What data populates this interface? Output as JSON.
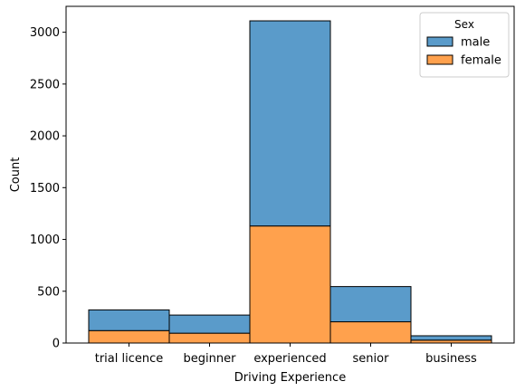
{
  "chart_data": {
    "type": "bar",
    "stacked": true,
    "categories": [
      "trial licence",
      "beginner",
      "experienced",
      "senior",
      "business"
    ],
    "series": [
      {
        "name": "female",
        "values": [
          120,
          95,
          1130,
          205,
          28
        ],
        "color": "#ffa14d"
      },
      {
        "name": "male",
        "values": [
          200,
          175,
          1980,
          340,
          42
        ],
        "color": "#5a9bca"
      }
    ],
    "xlabel": "Driving Experience",
    "ylabel": "Count",
    "ylim": [
      0,
      3250
    ],
    "yticks": [
      0,
      500,
      1000,
      1500,
      2000,
      2500,
      3000
    ],
    "legend": {
      "title": "Sex",
      "placement": "top-right",
      "entries": [
        {
          "label": "male",
          "color": "#5a9bca"
        },
        {
          "label": "female",
          "color": "#ffa14d"
        }
      ]
    },
    "grid": false
  }
}
